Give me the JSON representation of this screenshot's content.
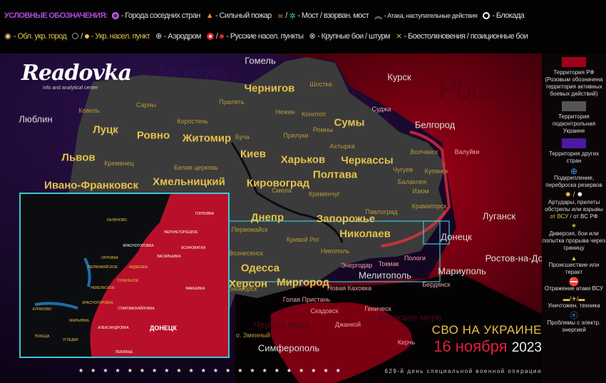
{
  "legend_top": {
    "title": "УСЛОВНЫЕ ОБОЗНАЧЕНИЯ:",
    "row1": [
      "- Города соседних стран",
      "- Сильный пожар",
      "/",
      "- Мост / взорван. мост",
      "- Атака, наступательные действия",
      "- Блокада"
    ],
    "row2": [
      "- Обл. укр. город",
      "/",
      "- Укр. насел. пункт",
      "- Аэродром",
      "/",
      "- Русские  насел. пункты",
      "- Крупные бои / штурм",
      "- Боестолкновения / позиционные бои"
    ]
  },
  "logo": {
    "name": "Readovka",
    "tagline": "info and analytical center"
  },
  "colors": {
    "russia": "#8a0010",
    "ukraine": "#3a3a3a",
    "other": "#2a0f4a",
    "accent": "#e6c24a",
    "inset_border": "#3cc8d4",
    "date": "#e0203a"
  },
  "map": {
    "country_labels": [
      "Россия",
      "Беларусь"
    ],
    "major_cities": [
      "Луцк",
      "Ровно",
      "Житомир",
      "Киев",
      "Львов",
      "Хмельницкий",
      "Ивано-Франковск",
      "Чернигов",
      "Сумы",
      "Полтава",
      "Харьков",
      "Черкассы",
      "Кировоград",
      "Днепр",
      "Запорожье",
      "Николаев",
      "Одесса",
      "Херсон",
      "Миргород"
    ],
    "small_cities": [
      "Сарны",
      "Ковель",
      "Коростень",
      "Прилять",
      "Буча",
      "Кременец",
      "Белая церковь",
      "Шостка",
      "Нежин",
      "Конотоп",
      "Прилуки",
      "Ахтырка",
      "Смела",
      "Кременчуг",
      "Чугуев",
      "Купянск",
      "Балаклея",
      "Изюм",
      "Краматорск",
      "Павлоград",
      "Первомайск",
      "Кривой Рог",
      "Вознесенск",
      "Никополь",
      "Черноморск",
      "о. Змеиный",
      "Ромны",
      "Волчанск"
    ],
    "russian_cities": [
      "Курск",
      "Белгород",
      "Луганск",
      "Донецк",
      "Мариуполь",
      "Ростов-на-Дону",
      "Мелитополь",
      "Бердянск",
      "Симферополь",
      "Люблин",
      "Гомель",
      "Валуйки",
      "Суджа",
      "Энергодар",
      "Токмак",
      "Пологи",
      "Новая Каховка",
      "Голая Пристань",
      "Скадовск",
      "Джанкой",
      "Керчь",
      "Геническ"
    ],
    "sea_labels": [
      "Черное море",
      "Азовское море"
    ]
  },
  "inset": {
    "cities_ru": [
      "ДОНЕЦК",
      "ГОРЛОВКА",
      "МАКЕЕВКА",
      "ЯСИНОВАТАЯ",
      "КРАСНОГОРОВКА",
      "ВЕРХНЕТОРЕЦКОЕ",
      "АЛЕКСАНДРОВКА",
      "СТАРОМИХАЙЛОВКА",
      "ВАСИЛЬЕВКА",
      "ЛЕБЯЖЬЕ"
    ],
    "cities_ua": [
      "АВДЕЕВКА",
      "МАРЬИНКА",
      "КРАСНОГОРОВКА",
      "НЕВЕЛЬСКОЕ",
      "ОРЛОВКА",
      "ТОНЕНЬКОЕ",
      "КАЛИНОВО",
      "ПЕРВОМАЙСКОЕ",
      "КУРАХОВО",
      "УГЛЕДАР",
      "ПОБЕДА"
    ]
  },
  "side_legend": [
    "Территория РФ (Розовым обозначена территория активных боевых действий)",
    "Территория подконтрольная Украине",
    "Территория других стран",
    "Подкрепление, переброска резервов",
    "Артудары, прилеты обстрелы или взрывы",
    "от ВСУ",
    "/",
    "от ВС РФ",
    "Диверсия, бои или попытка прорыва через границу",
    "Происшествие или теракт",
    "Отражение атаки ВСУ",
    "Уничтожен. техника",
    "Проблемы с электр. энергией"
  ],
  "footer": {
    "title": "СВО НА УКРАИНЕ",
    "date": "16 ноября",
    "year": "2023",
    "day": "629-й день специальной военной операции"
  }
}
